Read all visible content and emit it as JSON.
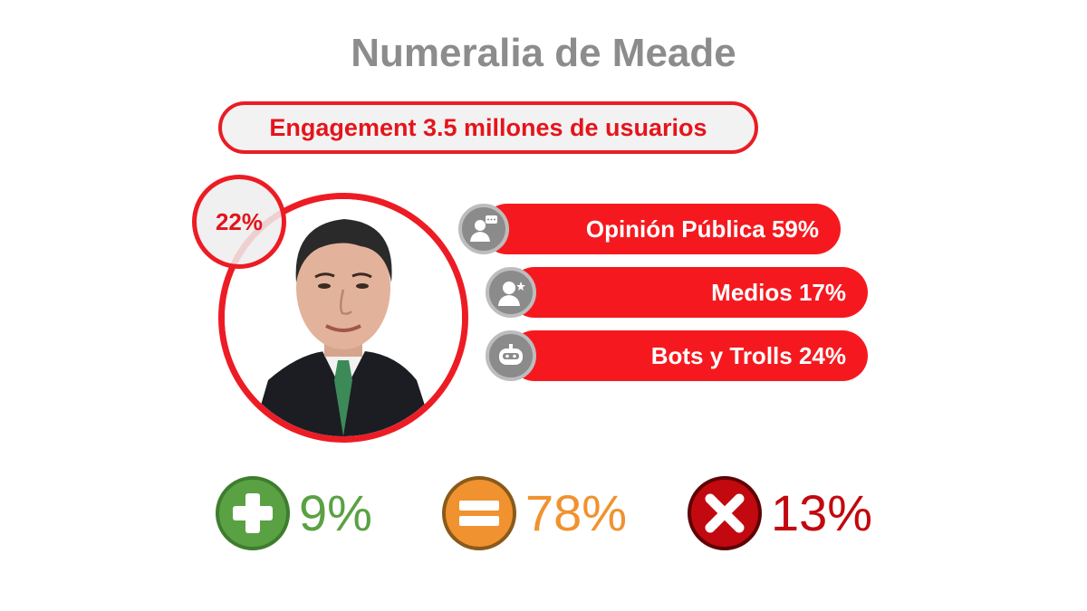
{
  "title": "Numeralia de Meade",
  "engagement": "Engagement 3.5 millones de usuarios",
  "portrait": {
    "badge": "22%"
  },
  "breakdown": [
    {
      "label": "Opinión Pública 59%",
      "icon": "public-opinion-icon"
    },
    {
      "label": "Medios 17%",
      "icon": "media-user-icon"
    },
    {
      "label": "Bots y Trolls 24%",
      "icon": "bot-icon"
    }
  ],
  "sentiment": {
    "positive": {
      "value": "9%",
      "icon": "plus-icon",
      "color": "#5aa144"
    },
    "neutral": {
      "value": "78%",
      "icon": "equals-icon",
      "color": "#f0922f"
    },
    "negative": {
      "value": "13%",
      "icon": "x-icon",
      "color": "#c1090f"
    }
  },
  "colors": {
    "accent": "#ed1c24",
    "title": "#8c8c8c"
  }
}
